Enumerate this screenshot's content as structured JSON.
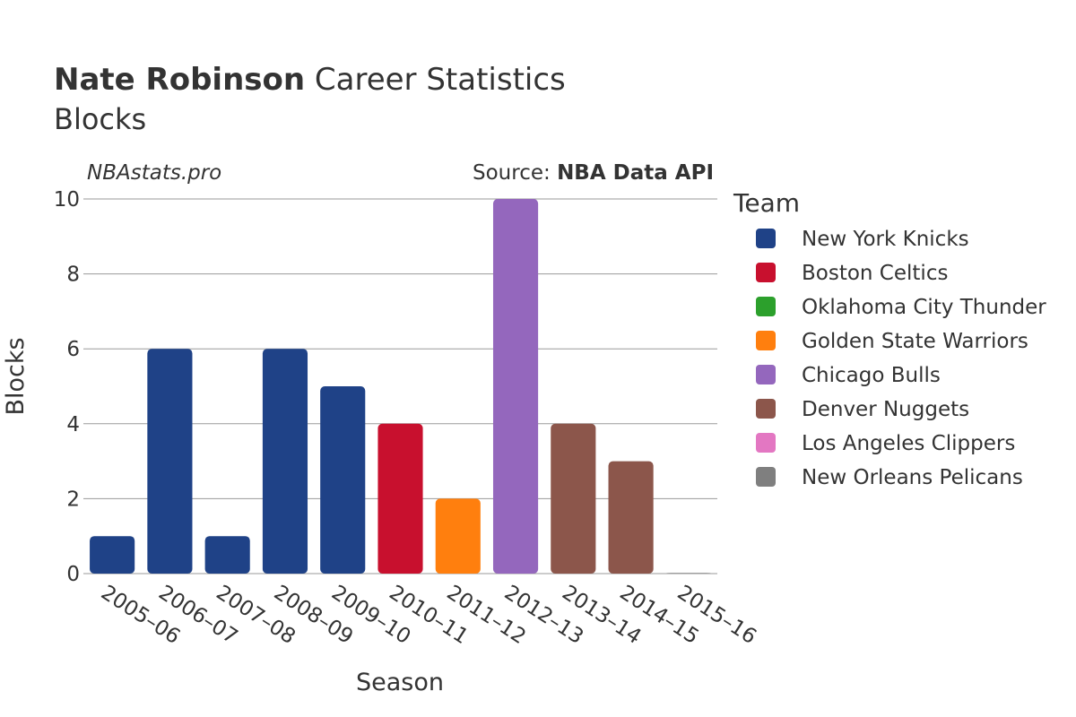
{
  "header": {
    "title_bold": "Nate Robinson",
    "title_rest": " Career Statistics",
    "subtitle": "Blocks",
    "site": "NBAstats.pro",
    "source_label": "Source: ",
    "source_name": "NBA Data API"
  },
  "legend": {
    "title": "Team",
    "items": [
      {
        "name": "New York Knicks",
        "color": "#1f4287"
      },
      {
        "name": "Boston Celtics",
        "color": "#c8102e"
      },
      {
        "name": "Oklahoma City Thunder",
        "color": "#2ca02c"
      },
      {
        "name": "Golden State Warriors",
        "color": "#ff7f0e"
      },
      {
        "name": "Chicago Bulls",
        "color": "#9467bd"
      },
      {
        "name": "Denver Nuggets",
        "color": "#8c564b"
      },
      {
        "name": "Los Angeles Clippers",
        "color": "#e377c2"
      },
      {
        "name": "New Orleans Pelicans",
        "color": "#7f7f7f"
      }
    ]
  },
  "chart_data": {
    "type": "bar",
    "xlabel": "Season",
    "ylabel": "Blocks",
    "ylim": [
      0,
      10
    ],
    "yticks": [
      0,
      2,
      4,
      6,
      8,
      10
    ],
    "grid": true,
    "legend_position": "right",
    "categories": [
      "2005–06",
      "2006–07",
      "2007–08",
      "2008–09",
      "2009–10",
      "2010–11",
      "2011–12",
      "2012–13",
      "2013–14",
      "2014–15",
      "2015–16"
    ],
    "values": [
      1,
      6,
      1,
      6,
      5,
      4,
      2,
      10,
      4,
      3,
      0
    ],
    "teams": [
      "New York Knicks",
      "New York Knicks",
      "New York Knicks",
      "New York Knicks",
      "New York Knicks",
      "Boston Celtics",
      "Golden State Warriors",
      "Chicago Bulls",
      "Denver Nuggets",
      "Denver Nuggets",
      "New Orleans Pelicans"
    ]
  }
}
